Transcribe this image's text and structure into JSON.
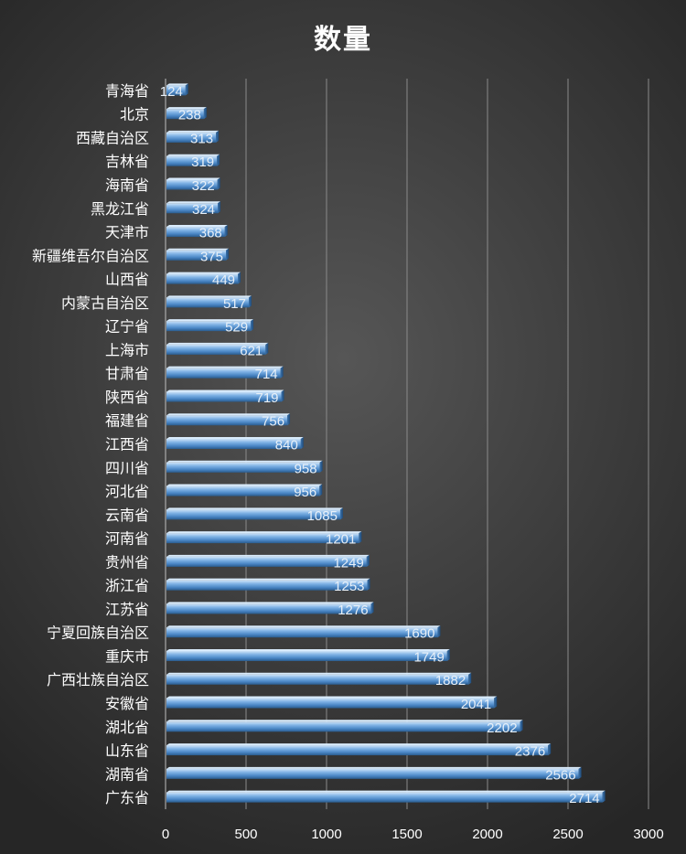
{
  "chart_data": {
    "type": "bar",
    "orientation": "horizontal",
    "title": "数量",
    "xlabel": "",
    "ylabel": "",
    "xlim": [
      0,
      3000
    ],
    "x_ticks": [
      "0",
      "500",
      "1000",
      "1500",
      "2000",
      "2500",
      "3000"
    ],
    "grid": true,
    "legend": "none",
    "categories": [
      "青海省",
      "北京",
      "西藏自治区",
      "吉林省",
      "海南省",
      "黑龙江省",
      "天津市",
      "新疆维吾尔自治区",
      "山西省",
      "内蒙古自治区",
      "辽宁省",
      "上海市",
      "甘肃省",
      "陕西省",
      "福建省",
      "江西省",
      "四川省",
      "河北省",
      "云南省",
      "河南省",
      "贵州省",
      "浙江省",
      "江苏省",
      "宁夏回族自治区",
      "重庆市",
      "广西壮族自治区",
      "安徽省",
      "湖北省",
      "山东省",
      "湖南省",
      "广东省"
    ],
    "values": [
      124,
      238,
      313,
      319,
      322,
      324,
      368,
      375,
      449,
      517,
      529,
      621,
      714,
      719,
      756,
      840,
      958,
      956,
      1085,
      1201,
      1249,
      1253,
      1276,
      1690,
      1749,
      1882,
      2041,
      2202,
      2376,
      2566,
      2714
    ],
    "colors": {
      "bar_light": "#a9cdef",
      "bar_mid": "#5b9bd5",
      "bar_dark": "#2a5c8e",
      "grid": "#8a8a8a",
      "text": "#ffffff"
    }
  }
}
